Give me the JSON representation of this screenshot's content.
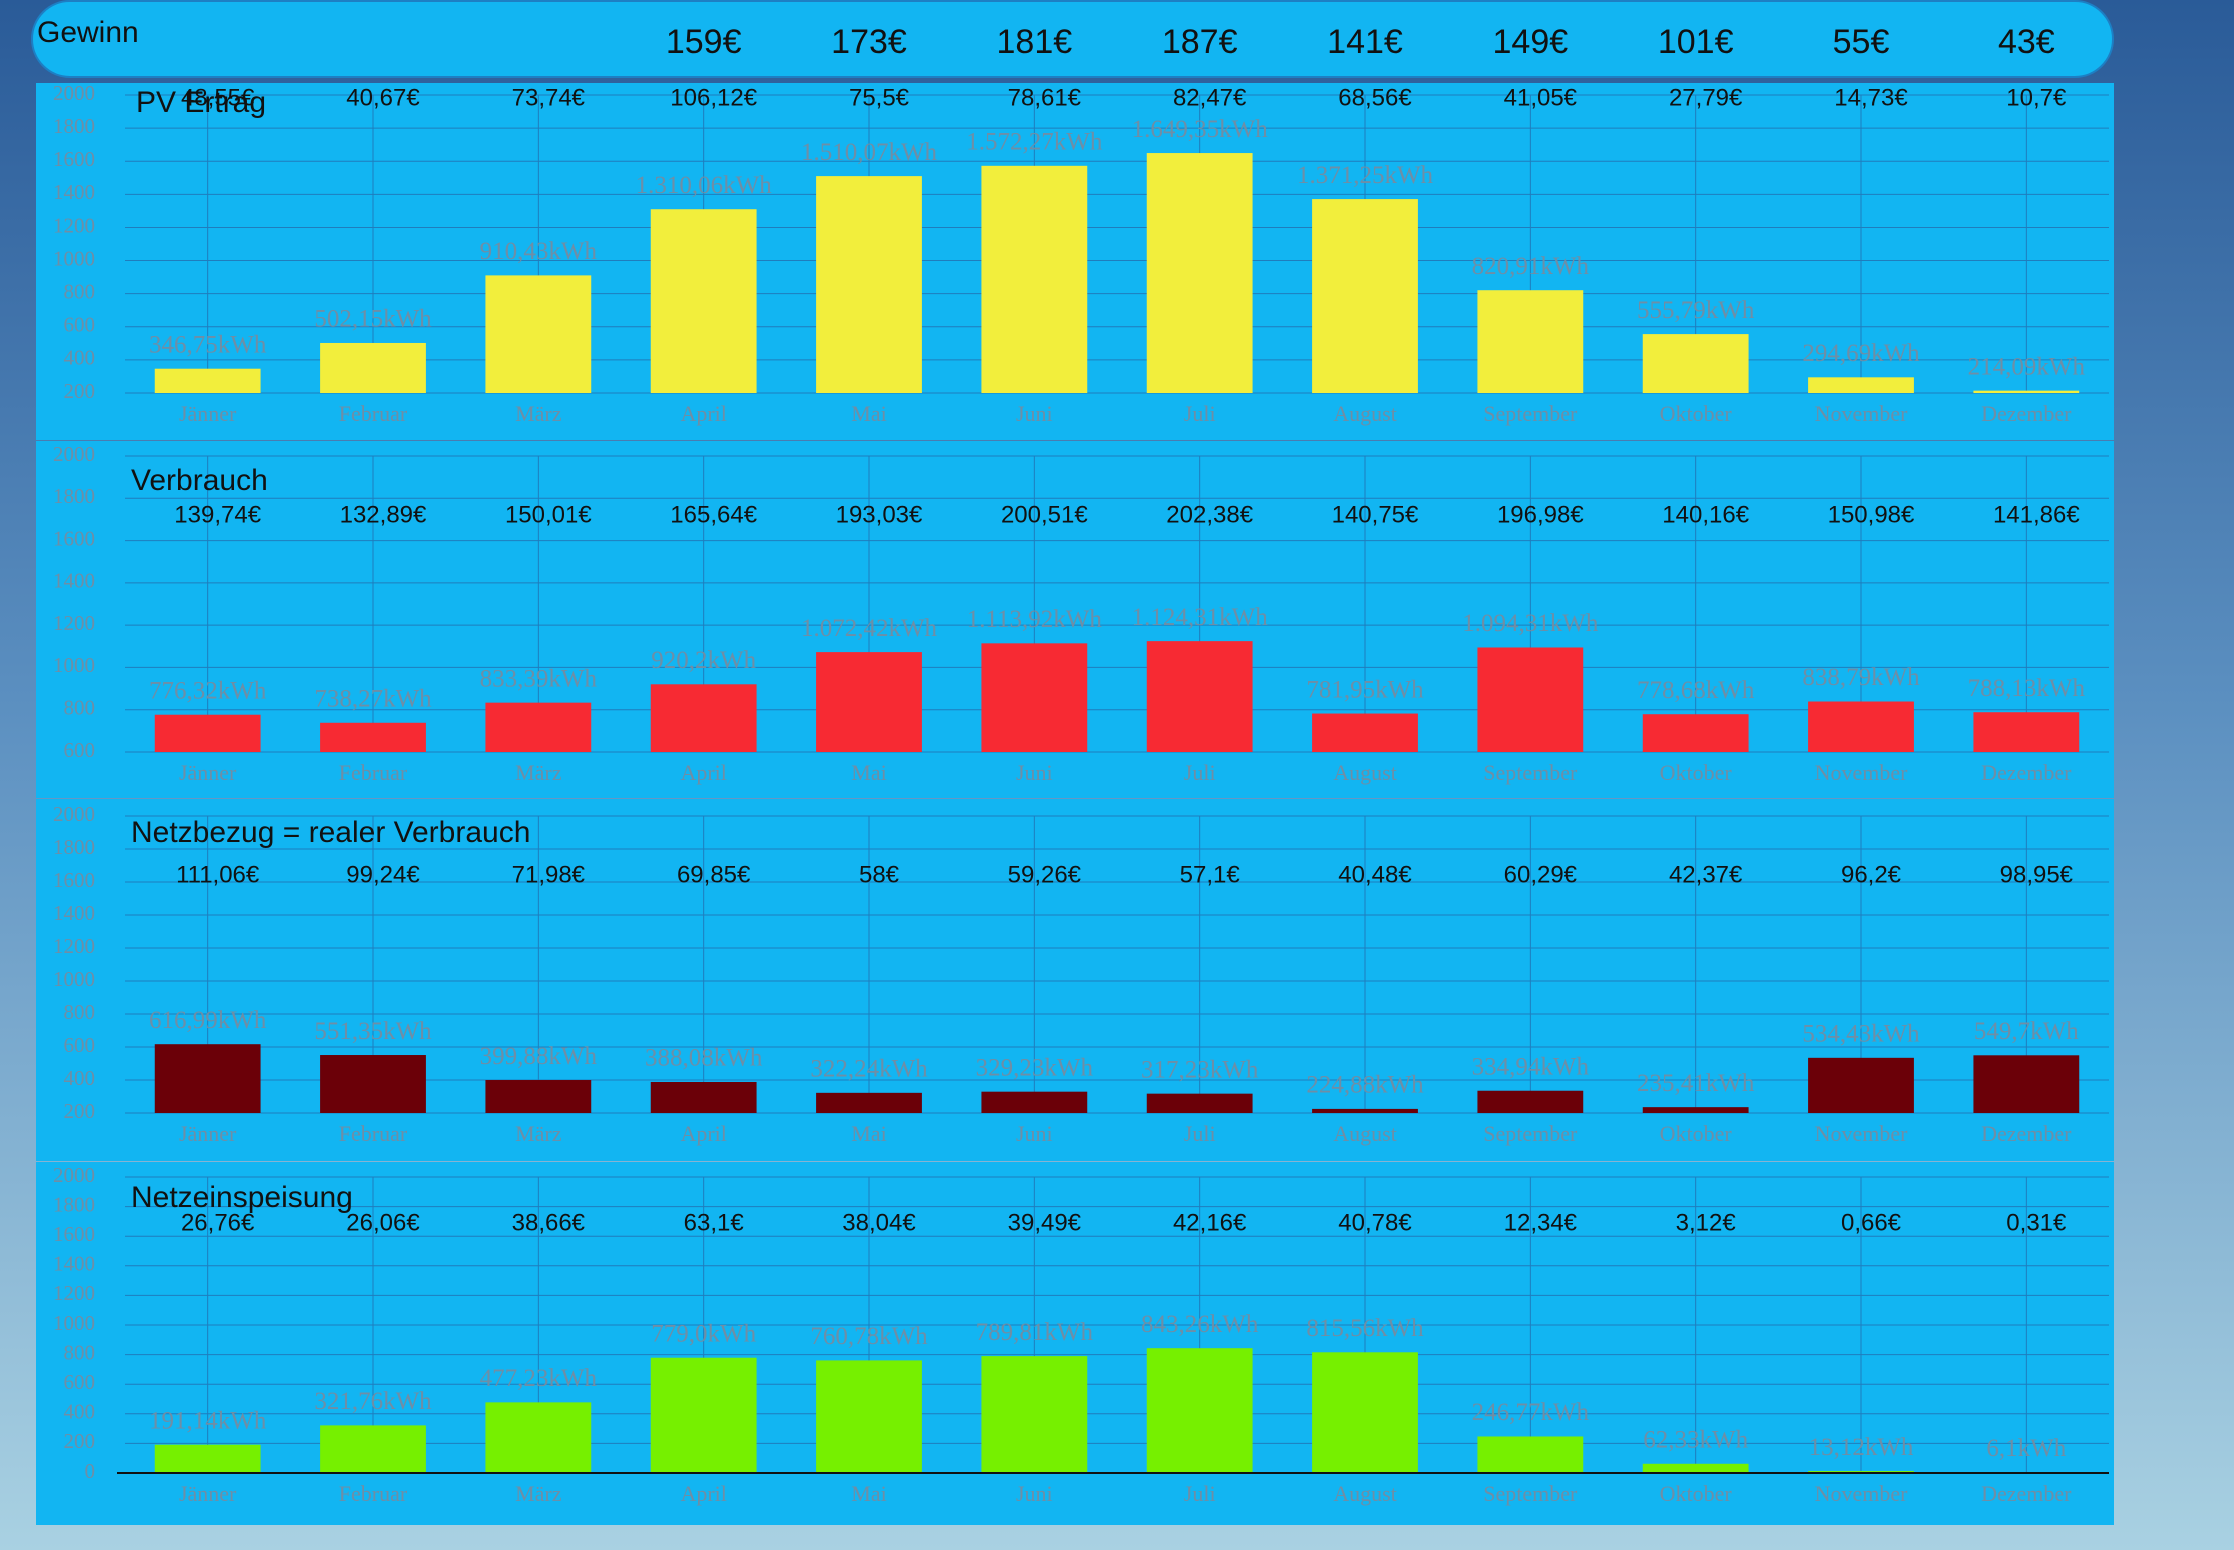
{
  "header": {
    "title": "Gewinn",
    "values": [
      "159€",
      "173€",
      "181€",
      "187€",
      "141€",
      "149€",
      "101€",
      "55€",
      "43€"
    ]
  },
  "chart_data": [
    {
      "type": "bar",
      "title": "PV Ertrag",
      "color": "#f2ee3c",
      "grid": true,
      "categories": [
        "Jänner",
        "Februar",
        "März",
        "April",
        "Mai",
        "Juni",
        "Juli",
        "August",
        "September",
        "Oktober",
        "November",
        "Dezember"
      ],
      "values": [
        346.75,
        502.15,
        910.43,
        1310.06,
        1510.07,
        1572.27,
        1649.35,
        1371.25,
        820.91,
        555.79,
        294.69,
        214.09
      ],
      "value_labels": [
        "346,75kWh",
        "502,15kWh",
        "910,43kWh",
        "1.310,06kWh",
        "1.510,07kWh",
        "1.572,27kWh",
        "1.649,35kWh",
        "1.371,25kWh",
        "820,91kWh",
        "555,79kWh",
        "294,69kWh",
        "214,09kWh"
      ],
      "annotations": [
        "48,55€",
        "40,67€",
        "73,74€",
        "106,12€",
        "75,5€",
        "78,61€",
        "82,47€",
        "68,56€",
        "41,05€",
        "27,79€",
        "14,73€",
        "10,7€"
      ],
      "ylim": [
        200,
        2000
      ],
      "yticks": [
        200,
        400,
        600,
        800,
        1000,
        1200,
        1400,
        1600,
        1800,
        2000
      ]
    },
    {
      "type": "bar",
      "title": "Verbrauch",
      "color": "#f72a33",
      "grid": true,
      "categories": [
        "Jänner",
        "Februar",
        "März",
        "April",
        "Mai",
        "Juni",
        "Juli",
        "August",
        "September",
        "Oktober",
        "November",
        "Dezember"
      ],
      "values": [
        776.32,
        738.27,
        833.39,
        920.2,
        1072.42,
        1113.92,
        1124.31,
        781.95,
        1094.31,
        778.68,
        838.79,
        788.13
      ],
      "value_labels": [
        "776,32kWh",
        "738,27kWh",
        "833,39kWh",
        "920,2kWh",
        "1.072,42kWh",
        "1.113,92kWh",
        "1.124,31kWh",
        "781,95kWh",
        "1.094,31kWh",
        "778,68kWh",
        "838,79kWh",
        "788,13kWh"
      ],
      "annotations": [
        "139,74€",
        "132,89€",
        "150,01€",
        "165,64€",
        "193,03€",
        "200,51€",
        "202,38€",
        "140,75€",
        "196,98€",
        "140,16€",
        "150,98€",
        "141,86€"
      ],
      "ylim": [
        600,
        2000
      ],
      "yticks": [
        600,
        800,
        1000,
        1200,
        1400,
        1600,
        1800,
        2000
      ]
    },
    {
      "type": "bar",
      "title": "Netzbezug = realer Verbrauch",
      "color": "#6b0008",
      "grid": true,
      "categories": [
        "Jänner",
        "Februar",
        "März",
        "April",
        "Mai",
        "Juni",
        "Juli",
        "August",
        "September",
        "Oktober",
        "November",
        "Dezember"
      ],
      "values": [
        616.99,
        551.35,
        399.88,
        388.08,
        322.24,
        329.23,
        317.23,
        224.88,
        334.94,
        235.41,
        534.43,
        549.7
      ],
      "value_labels": [
        "616,99kWh",
        "551,35kWh",
        "399,88kWh",
        "388,08kWh",
        "322,24kWh",
        "329,23kWh",
        "317,23kWh",
        "224,88kWh",
        "334,94kWh",
        "235,41kWh",
        "534,43kWh",
        "549,7kWh"
      ],
      "annotations": [
        "111,06€",
        "99,24€",
        "71,98€",
        "69,85€",
        "58€",
        "59,26€",
        "57,1€",
        "40,48€",
        "60,29€",
        "42,37€",
        "96,2€",
        "98,95€"
      ],
      "ylim": [
        200,
        2000
      ],
      "yticks": [
        200,
        400,
        600,
        800,
        1000,
        1200,
        1400,
        1600,
        1800,
        2000
      ]
    },
    {
      "type": "bar",
      "title": "Netzeinspeisung",
      "color": "#76f000",
      "grid": true,
      "categories": [
        "Jänner",
        "Februar",
        "März",
        "April",
        "Mai",
        "Juni",
        "Juli",
        "August",
        "September",
        "Oktober",
        "November",
        "Dezember"
      ],
      "values": [
        191.14,
        321.76,
        477.23,
        779,
        760.78,
        789.81,
        843.26,
        815.56,
        246.77,
        62.33,
        13.12,
        6.1
      ],
      "value_labels": [
        "191,14kWh",
        "321,76kWh",
        "477,23kWh",
        "779,0kWh",
        "760,78kWh",
        "789,81kWh",
        "843,26kWh",
        "815,56kWh",
        "246,77kWh",
        "62,33kWh",
        "13,12kWh",
        "6,1kWh"
      ],
      "annotations": [
        "26,76€",
        "26,06€",
        "38,66€",
        "63,1€",
        "38,04€",
        "39,49€",
        "42,16€",
        "40,78€",
        "12,34€",
        "3,12€",
        "0,66€",
        "0,31€"
      ],
      "ylim": [
        0,
        2000
      ],
      "yticks": [
        0,
        200,
        400,
        600,
        800,
        1000,
        1200,
        1400,
        1600,
        1800,
        2000
      ]
    }
  ]
}
